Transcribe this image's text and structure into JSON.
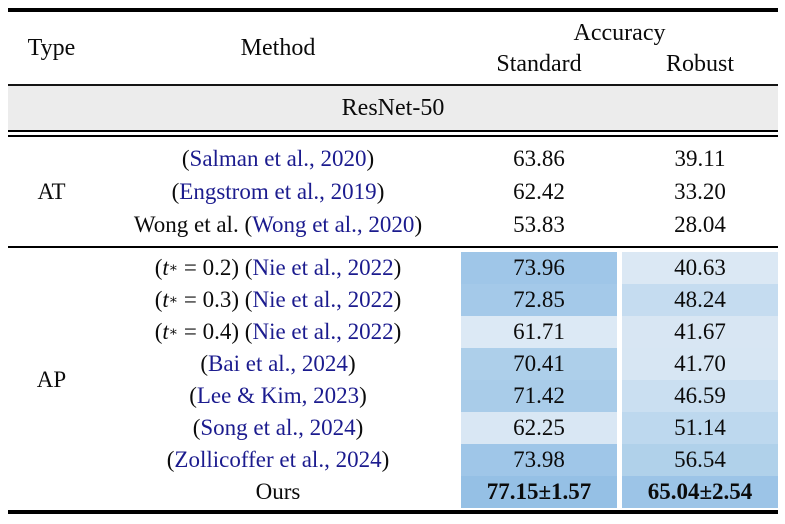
{
  "table": {
    "header": {
      "type": "Type",
      "method": "Method",
      "accuracy": "Accuracy",
      "standard": "Standard",
      "robust": "Robust"
    },
    "group_banner": "ResNet-50",
    "colors": {
      "citation_link_blue": "#1b1b8e",
      "banner_gray": "#ececec",
      "heat_lightest": "#dce9f5",
      "heat_darkest": "#95c0e5"
    },
    "sections": [
      {
        "id": "at",
        "type_label": "AT",
        "shaded": false,
        "rows": [
          {
            "method": [
              {
                "t": "(",
                "s": "p"
              },
              {
                "t": "Salman et al., 2020",
                "s": "link"
              },
              {
                "t": ")",
                "s": "p"
              }
            ],
            "standard": "63.86",
            "robust": "39.11",
            "standard_bg": "",
            "robust_bg": "",
            "bold": false
          },
          {
            "method": [
              {
                "t": "(",
                "s": "p"
              },
              {
                "t": "Engstrom et al., 2019",
                "s": "link"
              },
              {
                "t": ")",
                "s": "p"
              }
            ],
            "standard": "62.42",
            "robust": "33.20",
            "standard_bg": "",
            "robust_bg": "",
            "bold": false
          },
          {
            "method": [
              {
                "t": "Wong et al. (",
                "s": "p"
              },
              {
                "t": "Wong et al., 2020",
                "s": "link"
              },
              {
                "t": ")",
                "s": "p"
              }
            ],
            "standard": "53.83",
            "robust": "28.04",
            "standard_bg": "",
            "robust_bg": "",
            "bold": false
          }
        ]
      },
      {
        "id": "ap",
        "type_label": "AP",
        "shaded": true,
        "rows": [
          {
            "method": [
              {
                "t": "(",
                "s": "p"
              },
              {
                "t": "t",
                "s": "it"
              },
              {
                "t": "∗",
                "s": "sup"
              },
              {
                "t": " = 0.2) (",
                "s": "p"
              },
              {
                "t": "Nie et al., 2022",
                "s": "link"
              },
              {
                "t": ")",
                "s": "p"
              }
            ],
            "standard": "73.96",
            "robust": "40.63",
            "standard_bg": "#9fc6e8",
            "robust_bg": "#dbe8f4",
            "bold": false
          },
          {
            "method": [
              {
                "t": "(",
                "s": "p"
              },
              {
                "t": "t",
                "s": "it"
              },
              {
                "t": "∗",
                "s": "sup"
              },
              {
                "t": " = 0.3) (",
                "s": "p"
              },
              {
                "t": "Nie et al., 2022",
                "s": "link"
              },
              {
                "t": ")",
                "s": "p"
              }
            ],
            "standard": "72.85",
            "robust": "48.24",
            "standard_bg": "#a4c9e9",
            "robust_bg": "#c5dcf0",
            "bold": false
          },
          {
            "method": [
              {
                "t": "(",
                "s": "p"
              },
              {
                "t": "t",
                "s": "it"
              },
              {
                "t": "∗",
                "s": "sup"
              },
              {
                "t": " = 0.4) (",
                "s": "p"
              },
              {
                "t": "Nie et al., 2022",
                "s": "link"
              },
              {
                "t": ")",
                "s": "p"
              }
            ],
            "standard": "61.71",
            "robust": "41.67",
            "standard_bg": "#dce9f5",
            "robust_bg": "#d8e6f3",
            "bold": false
          },
          {
            "method": [
              {
                "t": "(",
                "s": "p"
              },
              {
                "t": "Bai et al., 2024",
                "s": "link"
              },
              {
                "t": ")",
                "s": "p"
              }
            ],
            "standard": "70.41",
            "robust": "41.70",
            "standard_bg": "#adcfea",
            "robust_bg": "#d7e6f3",
            "bold": false
          },
          {
            "method": [
              {
                "t": "(",
                "s": "p"
              },
              {
                "t": "Lee & Kim, 2023",
                "s": "link"
              },
              {
                "t": ")",
                "s": "p"
              }
            ],
            "standard": "71.42",
            "robust": "46.59",
            "standard_bg": "#a9cce9",
            "robust_bg": "#cadff1",
            "bold": false
          },
          {
            "method": [
              {
                "t": "(",
                "s": "p"
              },
              {
                "t": "Song et al., 2024",
                "s": "link"
              },
              {
                "t": ")",
                "s": "p"
              }
            ],
            "standard": "62.25",
            "robust": "51.14",
            "standard_bg": "#d9e7f4",
            "robust_bg": "#bdd8ee",
            "bold": false
          },
          {
            "method": [
              {
                "t": "(",
                "s": "p"
              },
              {
                "t": "Zollicoffer et al., 2024",
                "s": "link"
              },
              {
                "t": ")",
                "s": "p"
              }
            ],
            "standard": "73.98",
            "robust": "56.54",
            "standard_bg": "#9fc6e8",
            "robust_bg": "#b0d1ea",
            "bold": false
          },
          {
            "method": [
              {
                "t": "Ours",
                "s": "p"
              }
            ],
            "standard": "77.15±1.57",
            "robust": "65.04±2.54",
            "standard_bg": "#95c0e5",
            "robust_bg": "#9cc4e7",
            "bold": true
          }
        ]
      }
    ]
  }
}
